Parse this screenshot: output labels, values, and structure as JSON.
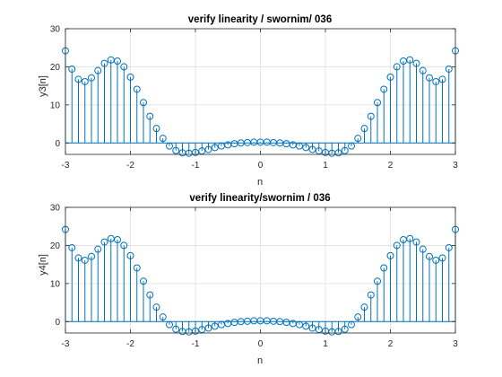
{
  "figure": {
    "background": "#ffffff"
  },
  "chart_data": [
    {
      "type": "stem",
      "title": "verify linearity / swornim/ 036",
      "xlabel": "n",
      "ylabel": "y3[n]",
      "xlim": [
        -3,
        3
      ],
      "ylim": [
        -3,
        30
      ],
      "xticks": [
        -3,
        -2,
        -1,
        0,
        1,
        2,
        3
      ],
      "yticks": [
        0,
        10,
        20,
        30
      ],
      "grid": true,
      "color": "#0072BD",
      "x": [
        -3,
        -2.9,
        -2.8,
        -2.7,
        -2.6,
        -2.5,
        -2.4,
        -2.3,
        -2.2,
        -2.1,
        -2,
        -1.9,
        -1.8,
        -1.7,
        -1.6,
        -1.5,
        -1.4,
        -1.3,
        -1.2,
        -1.1,
        -1,
        -0.9,
        -0.8,
        -0.7,
        -0.6,
        -0.5,
        -0.4,
        -0.3,
        -0.2,
        -0.1,
        0,
        0.1,
        0.2,
        0.3,
        0.4,
        0.5,
        0.6,
        0.7,
        0.8,
        0.9,
        1,
        1.1,
        1.2,
        1.3,
        1.4,
        1.5,
        1.6,
        1.7,
        1.8,
        1.9,
        2,
        2.1,
        2.2,
        2.3,
        2.4,
        2.5,
        2.6,
        2.7,
        2.8,
        2.9,
        3
      ],
      "y": [
        24.2,
        19.4,
        16.7,
        16.1,
        17.1,
        19.0,
        20.9,
        21.8,
        21.5,
        20.0,
        17.3,
        14.1,
        10.6,
        7.0,
        3.8,
        1.2,
        -0.8,
        -2.0,
        -2.6,
        -2.7,
        -2.5,
        -2.1,
        -1.7,
        -1.2,
        -0.8,
        -0.5,
        -0.2,
        0.0,
        0.1,
        0.2,
        0.2,
        0.2,
        0.1,
        0.0,
        -0.2,
        -0.5,
        -0.8,
        -1.2,
        -1.7,
        -2.1,
        -2.5,
        -2.7,
        -2.6,
        -2.0,
        -0.8,
        1.2,
        3.8,
        7.0,
        10.6,
        14.1,
        17.3,
        20.0,
        21.5,
        21.8,
        20.9,
        19.0,
        17.1,
        16.1,
        16.7,
        19.4,
        24.2
      ]
    },
    {
      "type": "stem",
      "title": "verify linearity/swornim / 036",
      "xlabel": "n",
      "ylabel": "y4[n]",
      "xlim": [
        -3,
        3
      ],
      "ylim": [
        -3,
        30
      ],
      "xticks": [
        -3,
        -2,
        -1,
        0,
        1,
        2,
        3
      ],
      "yticks": [
        0,
        10,
        20,
        30
      ],
      "grid": true,
      "color": "#0072BD",
      "x": [
        -3,
        -2.9,
        -2.8,
        -2.7,
        -2.6,
        -2.5,
        -2.4,
        -2.3,
        -2.2,
        -2.1,
        -2,
        -1.9,
        -1.8,
        -1.7,
        -1.6,
        -1.5,
        -1.4,
        -1.3,
        -1.2,
        -1.1,
        -1,
        -0.9,
        -0.8,
        -0.7,
        -0.6,
        -0.5,
        -0.4,
        -0.3,
        -0.2,
        -0.1,
        0,
        0.1,
        0.2,
        0.3,
        0.4,
        0.5,
        0.6,
        0.7,
        0.8,
        0.9,
        1,
        1.1,
        1.2,
        1.3,
        1.4,
        1.5,
        1.6,
        1.7,
        1.8,
        1.9,
        2,
        2.1,
        2.2,
        2.3,
        2.4,
        2.5,
        2.6,
        2.7,
        2.8,
        2.9,
        3
      ],
      "y": [
        24.2,
        19.4,
        16.7,
        16.1,
        17.1,
        19.0,
        20.9,
        21.8,
        21.5,
        20.0,
        17.3,
        14.1,
        10.6,
        7.0,
        3.8,
        1.2,
        -0.8,
        -2.0,
        -2.6,
        -2.7,
        -2.5,
        -2.1,
        -1.7,
        -1.2,
        -0.8,
        -0.5,
        -0.2,
        0.0,
        0.1,
        0.2,
        0.2,
        0.2,
        0.1,
        0.0,
        -0.2,
        -0.5,
        -0.8,
        -1.2,
        -1.7,
        -2.1,
        -2.5,
        -2.7,
        -2.6,
        -2.0,
        -0.8,
        1.2,
        3.8,
        7.0,
        10.6,
        14.1,
        17.3,
        20.0,
        21.5,
        21.8,
        20.9,
        19.0,
        17.1,
        16.1,
        16.7,
        19.4,
        24.2
      ]
    }
  ]
}
